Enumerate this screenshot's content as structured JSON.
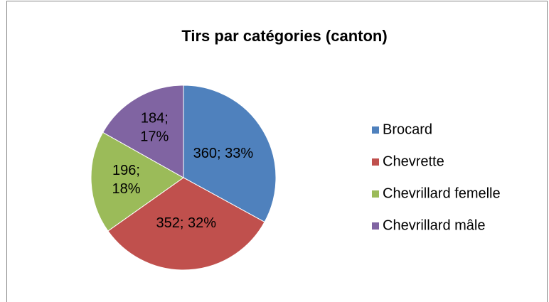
{
  "chart_data": {
    "type": "pie",
    "title": "Tirs par catégories (canton)",
    "categories": [
      "Brocard",
      "Chevrette",
      "Chevrillard femelle",
      "Chevrillard mâle"
    ],
    "values": [
      360,
      352,
      196,
      184
    ],
    "value_labels": [
      "360; 33%",
      "352; 32%",
      "196; 18%",
      "184; 17%"
    ],
    "colors": [
      "#4f81bd",
      "#c0504d",
      "#9bbb59",
      "#8064a2"
    ],
    "legend": "right"
  }
}
